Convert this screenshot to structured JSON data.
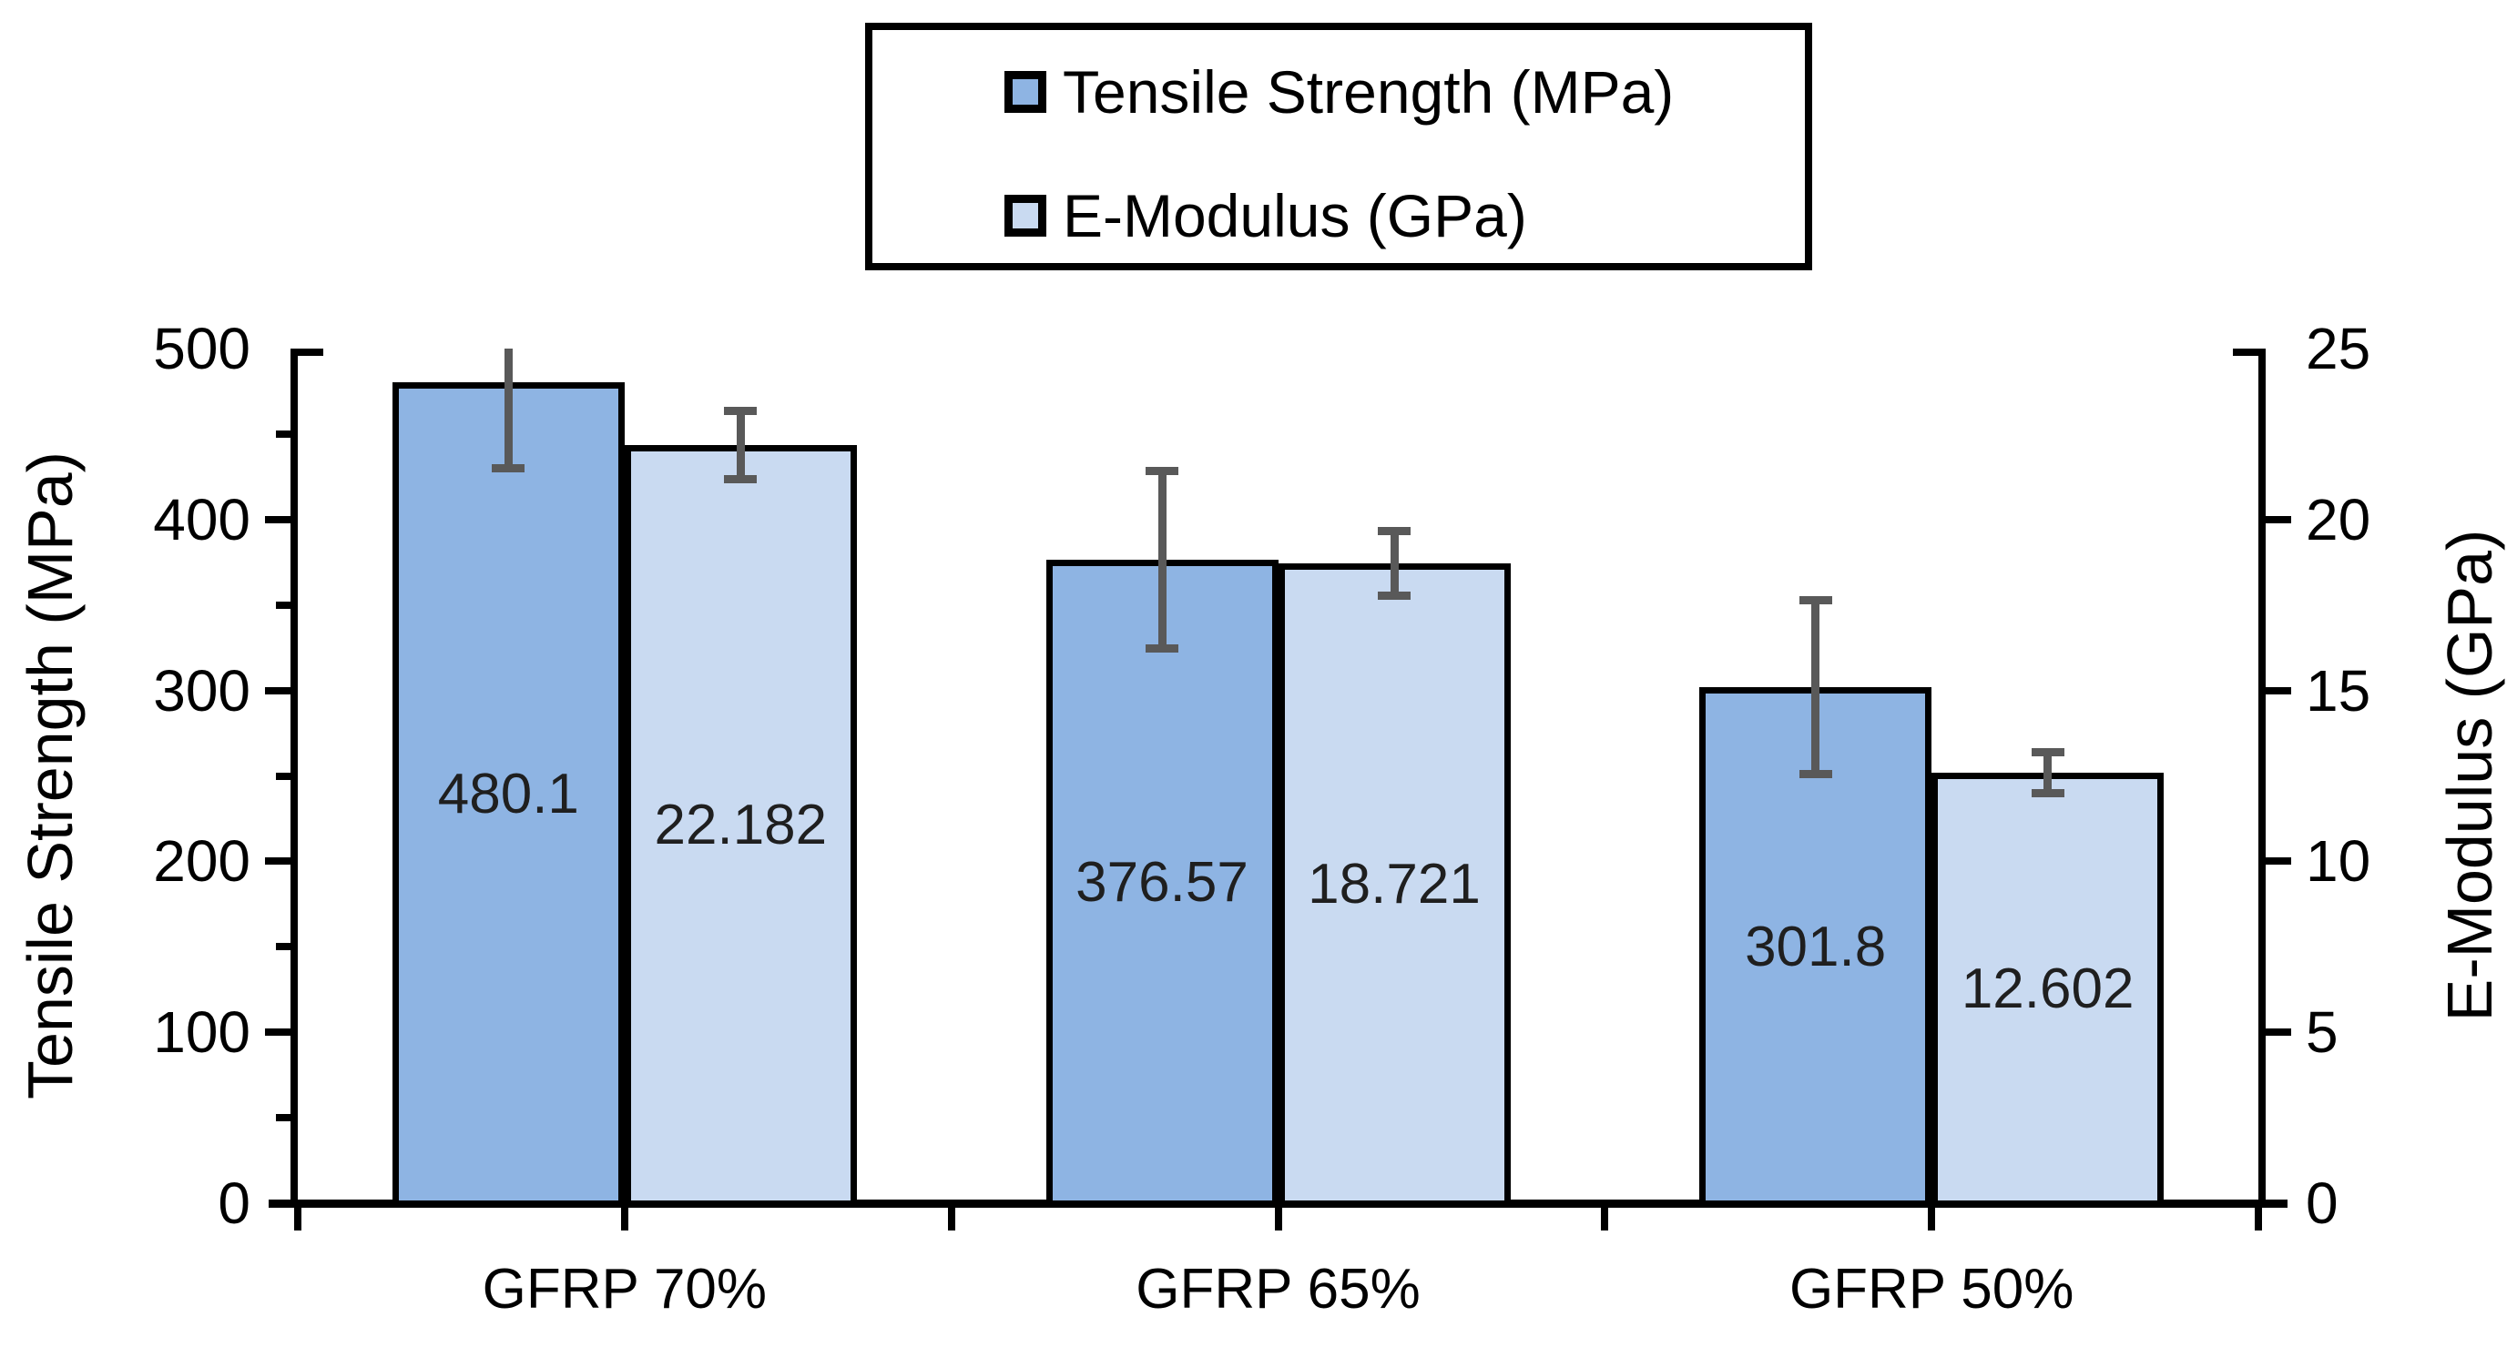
{
  "chart_data": {
    "type": "bar",
    "dual_axis": true,
    "categories": [
      "GFRP 70%",
      "GFRP 65%",
      "GFRP 50%"
    ],
    "series": [
      {
        "name": "Tensile Strength (MPa)",
        "axis": "left",
        "color": "#8EB4E3",
        "values": [
          480.1,
          376.57,
          301.8
        ],
        "labels": [
          "480.1",
          "376.57",
          "301.8"
        ],
        "error_bars": [
          50,
          52,
          51
        ]
      },
      {
        "name": "E-Modulus (GPa)",
        "axis": "right",
        "color": "#C9DAF1",
        "values": [
          22.182,
          18.721,
          12.602
        ],
        "labels": [
          "22.182",
          "18.721",
          "12.602"
        ],
        "error_bars": [
          1.0,
          0.95,
          0.6
        ]
      }
    ],
    "left_axis": {
      "title": "Tensile Strength (MPa)",
      "min": 0,
      "max": 500,
      "major": 100,
      "minor": 50,
      "tick_labels": [
        "0",
        "100",
        "200",
        "300",
        "400",
        "500"
      ]
    },
    "right_axis": {
      "title": "E-Modulus (GPa)",
      "min": 0,
      "max": 25,
      "major": 5,
      "tick_labels": [
        "0",
        "5",
        "10",
        "15",
        "20",
        "25"
      ]
    },
    "legend": {
      "position": "top",
      "entries": [
        "Tensile Strength (MPa)",
        "E-Modulus (GPa)"
      ]
    },
    "colors": {
      "bar_border": "#000000",
      "error_bar": "#595959",
      "axis": "#000000",
      "data_label": "#1f1f1f",
      "background": "#ffffff"
    },
    "grid": false
  }
}
